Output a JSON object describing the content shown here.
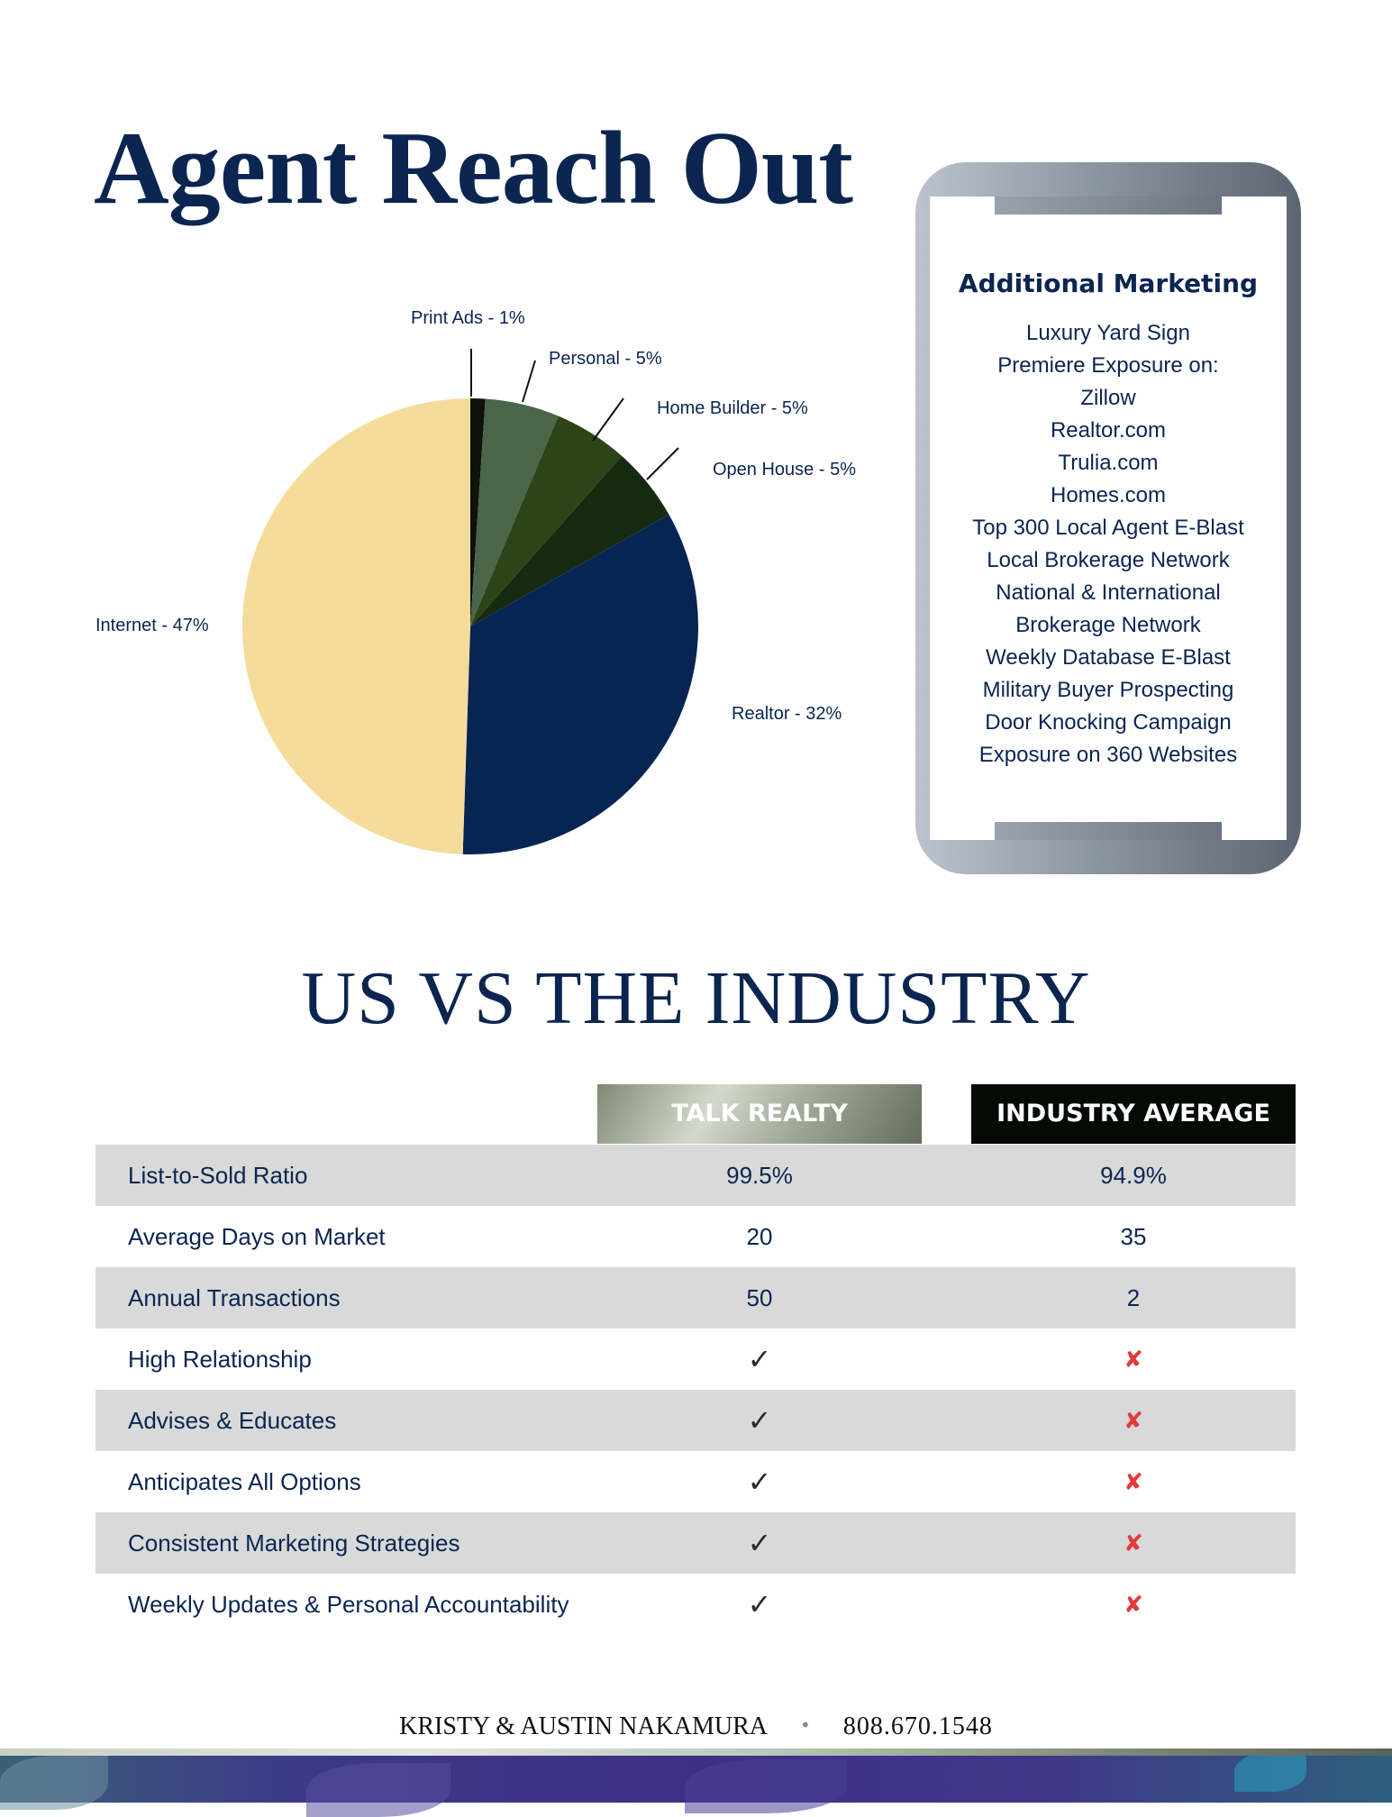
{
  "page": {
    "title": "Agent Reach Out",
    "section_title": "US VS THE INDUSTRY"
  },
  "chart_data": {
    "type": "pie",
    "title": "Agent Reach Out",
    "slices": [
      {
        "label": "Print Ads - 1%",
        "name": "Print Ads",
        "value": 1,
        "color": "#0e1209"
      },
      {
        "label": "Personal - 5%",
        "name": "Personal",
        "value": 5,
        "color": "#4a654a"
      },
      {
        "label": "Home Builder - 5%",
        "name": "Home Builder",
        "value": 5,
        "color": "#2c4417"
      },
      {
        "label": "Open House - 5%",
        "name": "Open House",
        "value": 5,
        "color": "#162a12"
      },
      {
        "label": "Realtor - 32%",
        "name": "Realtor",
        "value": 32,
        "color": "#062553"
      },
      {
        "label": "Internet - 47%",
        "name": "Internet",
        "value": 47,
        "color": "#f5dc9b"
      }
    ]
  },
  "marketing": {
    "heading": "Additional Marketing",
    "items": [
      "Luxury Yard Sign",
      "Premiere Exposure on:",
      "Zillow",
      "Realtor.com",
      "Trulia.com",
      "Homes.com",
      "Top 300 Local Agent E-Blast",
      "Local Brokerage Network",
      "National & International",
      "Brokerage Network",
      "Weekly Database E-Blast",
      "Military Buyer Prospecting",
      "Door Knocking Campaign",
      "Exposure on 360 Websites"
    ]
  },
  "comparison": {
    "columns": [
      "TALK REALTY",
      "INDUSTRY AVERAGE"
    ],
    "rows": [
      {
        "label": "List-to-Sold Ratio",
        "talk": "99.5%",
        "industry": "94.9%"
      },
      {
        "label": "Average Days on Market",
        "talk": "20",
        "industry": "35"
      },
      {
        "label": "Annual Transactions",
        "talk": "50",
        "industry": "2"
      },
      {
        "label": "High Relationship",
        "talk": "✓",
        "industry": "✘"
      },
      {
        "label": "Advises & Educates",
        "talk": "✓",
        "industry": "✘"
      },
      {
        "label": "Anticipates All Options",
        "talk": "✓",
        "industry": "✘"
      },
      {
        "label": "Consistent Marketing Strategies",
        "talk": "✓",
        "industry": "✘"
      },
      {
        "label": "Weekly Updates & Personal Accountability",
        "talk": "✓",
        "industry": "✘"
      }
    ]
  },
  "footer": {
    "names": "KRISTY & AUSTIN NAKAMURA",
    "separator": "•",
    "phone": "808.670.1548"
  }
}
